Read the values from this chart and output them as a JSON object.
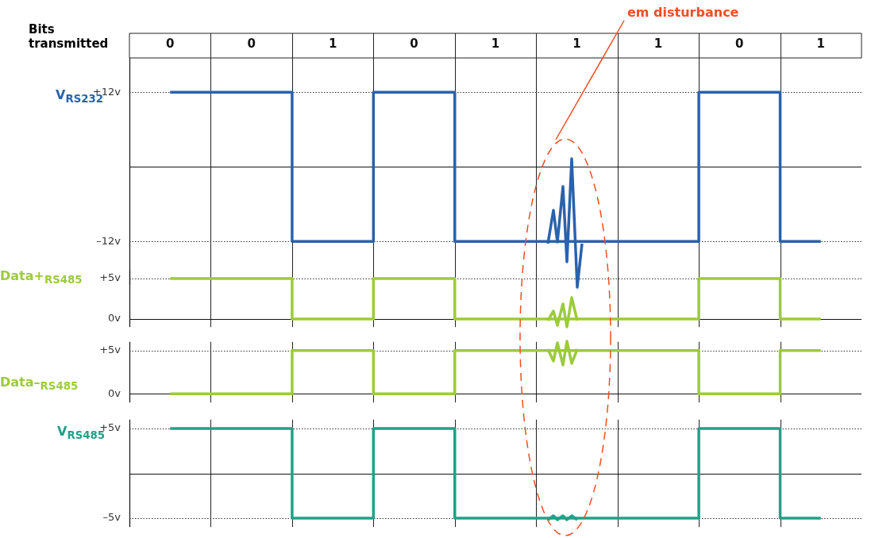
{
  "chart_data": [
    {
      "type": "step",
      "xlabel": "Bits transmitted",
      "ylabel": "V$_{RS232}$",
      "categories": [
        "0",
        "0",
        "1",
        "0",
        "1",
        "1",
        "1",
        "0",
        "1"
      ],
      "series": [
        {
          "color": "#2a62ac",
          "values": [
            12,
            12,
            -12,
            12,
            -12,
            -12,
            -12,
            12,
            -12
          ]
        }
      ],
      "ylim": [
        -19,
        17.5
      ],
      "yticks": [
        {
          "value": -12,
          "label": "–12v"
        },
        {
          "value": 0,
          "label": null
        },
        {
          "value": 12,
          "label": "+12v"
        }
      ],
      "grid": true,
      "annotations": [
        "em disturbance"
      ]
    },
    {
      "type": "step",
      "ylabel": "Data+$_{RS485}$",
      "categories": [
        "0",
        "0",
        "1",
        "0",
        "1",
        "1",
        "1",
        "0",
        "1"
      ],
      "series": [
        {
          "color": "#9ccb3b",
          "values": [
            5,
            5,
            0,
            5,
            0,
            0,
            0,
            5,
            0
          ]
        }
      ],
      "ylim": [
        -1,
        6
      ],
      "yticks": [
        {
          "value": 0,
          "label": "0v"
        },
        {
          "value": 5,
          "label": "+5v"
        }
      ],
      "tick_labels": "y",
      "grid": "x",
      "ref_lines": [
        {
          "axis": "y",
          "value": 5,
          "color": "#333333",
          "line_style": "dotted"
        }
      ]
    },
    {
      "type": "step",
      "ylabel": "Data–$_{RS485}$",
      "categories": [
        "0",
        "0",
        "1",
        "0",
        "1",
        "1",
        "1",
        "0",
        "1"
      ],
      "series": [
        {
          "color": "#9ccb3b",
          "values": [
            0,
            0,
            5,
            0,
            5,
            5,
            5,
            0,
            5
          ]
        }
      ],
      "ylim": [
        -1,
        6
      ],
      "yticks": [
        {
          "value": 0,
          "label": "0v"
        },
        {
          "value": 5,
          "label": "+5v"
        }
      ],
      "tick_labels": "y",
      "grid": "x",
      "ref_lines": [
        {
          "axis": "y",
          "value": 5,
          "color": "#333333",
          "line_style": "dotted"
        }
      ]
    },
    {
      "type": "step",
      "ylabel": "V$_{RS485}$",
      "categories": [
        "0",
        "0",
        "1",
        "0",
        "1",
        "1",
        "1",
        "0",
        "1"
      ],
      "series": [
        {
          "color": "#1fa288",
          "values": [
            5,
            5,
            -5,
            5,
            -5,
            -5,
            -5,
            5,
            -5
          ]
        }
      ],
      "ylim": [
        -6,
        6
      ],
      "yticks": [
        {
          "value": -5,
          "label": "–5v"
        },
        {
          "value": 0,
          "label": null
        },
        {
          "value": 5,
          "label": "+5v"
        }
      ],
      "tick_labels": "y",
      "grid": true
    }
  ]
}
